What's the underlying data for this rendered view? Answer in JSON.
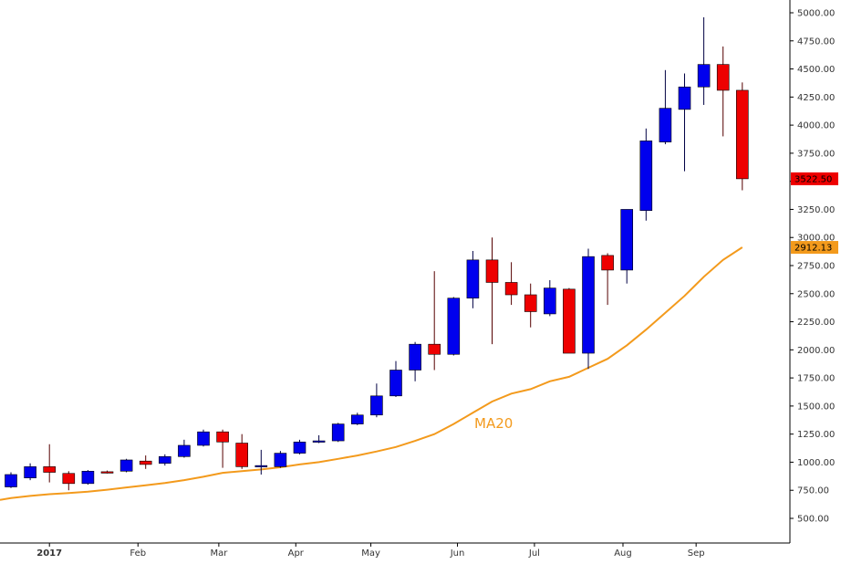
{
  "chart_data": {
    "type": "candlestick",
    "y_axis": {
      "ticks": [
        "5000.00",
        "4750.00",
        "4500.00",
        "4250.00",
        "4000.00",
        "3750.00",
        "3500.00",
        "3250.00",
        "3000.00",
        "2750.00",
        "2500.00",
        "2250.00",
        "2000.00",
        "1750.00",
        "1500.00",
        "1250.00",
        "1000.00",
        "750.00",
        "500.00"
      ],
      "ylim": [
        250,
        5080
      ],
      "position": "right"
    },
    "x_axis": {
      "months": [
        {
          "label": "2017",
          "index": 2,
          "bold": true
        },
        {
          "label": "Feb",
          "index": 6.6
        },
        {
          "label": "Mar",
          "index": 10.8
        },
        {
          "label": "Apr",
          "index": 14.8
        },
        {
          "label": "May",
          "index": 18.7
        },
        {
          "label": "Jun",
          "index": 23.2
        },
        {
          "label": "Jul",
          "index": 27.2
        },
        {
          "label": "Aug",
          "index": 31.8
        },
        {
          "label": "Sep",
          "index": 35.6
        }
      ]
    },
    "grid": false,
    "up_color": "#0000ee",
    "down_color": "#ee0000",
    "candles": [
      {
        "o": 780,
        "h": 910,
        "l": 770,
        "c": 890
      },
      {
        "o": 860,
        "h": 990,
        "l": 840,
        "c": 960
      },
      {
        "o": 960,
        "h": 1160,
        "l": 820,
        "c": 910
      },
      {
        "o": 900,
        "h": 920,
        "l": 750,
        "c": 810
      },
      {
        "o": 810,
        "h": 930,
        "l": 800,
        "c": 920
      },
      {
        "o": 915,
        "h": 925,
        "l": 900,
        "c": 910
      },
      {
        "o": 920,
        "h": 1030,
        "l": 910,
        "c": 1020
      },
      {
        "o": 1010,
        "h": 1060,
        "l": 940,
        "c": 980
      },
      {
        "o": 990,
        "h": 1070,
        "l": 970,
        "c": 1050
      },
      {
        "o": 1050,
        "h": 1200,
        "l": 1040,
        "c": 1150
      },
      {
        "o": 1150,
        "h": 1290,
        "l": 1140,
        "c": 1270
      },
      {
        "o": 1270,
        "h": 1290,
        "l": 950,
        "c": 1180
      },
      {
        "o": 1170,
        "h": 1250,
        "l": 940,
        "c": 960
      },
      {
        "o": 960,
        "h": 1110,
        "l": 890,
        "c": 970
      },
      {
        "o": 960,
        "h": 1100,
        "l": 950,
        "c": 1080
      },
      {
        "o": 1080,
        "h": 1200,
        "l": 1070,
        "c": 1180
      },
      {
        "o": 1180,
        "h": 1240,
        "l": 1170,
        "c": 1190
      },
      {
        "o": 1190,
        "h": 1350,
        "l": 1180,
        "c": 1340
      },
      {
        "o": 1340,
        "h": 1440,
        "l": 1330,
        "c": 1420
      },
      {
        "o": 1420,
        "h": 1700,
        "l": 1400,
        "c": 1590
      },
      {
        "o": 1590,
        "h": 1900,
        "l": 1580,
        "c": 1820
      },
      {
        "o": 1820,
        "h": 2070,
        "l": 1720,
        "c": 2050
      },
      {
        "o": 2050,
        "h": 2700,
        "l": 1820,
        "c": 1960
      },
      {
        "o": 1960,
        "h": 2470,
        "l": 1950,
        "c": 2460
      },
      {
        "o": 2460,
        "h": 2880,
        "l": 2370,
        "c": 2800
      },
      {
        "o": 2800,
        "h": 3000,
        "l": 2050,
        "c": 2600
      },
      {
        "o": 2600,
        "h": 2780,
        "l": 2400,
        "c": 2490
      },
      {
        "o": 2490,
        "h": 2590,
        "l": 2200,
        "c": 2340
      },
      {
        "o": 2320,
        "h": 2620,
        "l": 2300,
        "c": 2550
      },
      {
        "o": 2540,
        "h": 2550,
        "l": 1970,
        "c": 1970
      },
      {
        "o": 1970,
        "h": 2900,
        "l": 1830,
        "c": 2830
      },
      {
        "o": 2840,
        "h": 2860,
        "l": 2400,
        "c": 2710
      },
      {
        "o": 2710,
        "h": 3250,
        "l": 2590,
        "c": 3250
      },
      {
        "o": 3240,
        "h": 3970,
        "l": 3150,
        "c": 3860
      },
      {
        "o": 3850,
        "h": 4490,
        "l": 3830,
        "c": 4150
      },
      {
        "o": 4140,
        "h": 4460,
        "l": 3590,
        "c": 4340
      },
      {
        "o": 4340,
        "h": 4960,
        "l": 4180,
        "c": 4540
      },
      {
        "o": 4540,
        "h": 4700,
        "l": 3900,
        "c": 4310
      },
      {
        "o": 4310,
        "h": 4380,
        "l": 3420,
        "c": 3522.5
      }
    ],
    "ma20": {
      "name": "MA20",
      "color": "#f39a1c",
      "values": [
        680,
        700,
        715,
        725,
        738,
        755,
        775,
        795,
        815,
        840,
        870,
        905,
        920,
        935,
        955,
        980,
        1000,
        1030,
        1060,
        1095,
        1135,
        1190,
        1250,
        1340,
        1440,
        1540,
        1610,
        1650,
        1720,
        1760,
        1840,
        1920,
        2040,
        2180,
        2330,
        2480,
        2650,
        2800,
        2912.13
      ]
    },
    "last_price": {
      "value": "3522.50",
      "color": "#ee0000"
    },
    "ma_last": {
      "value": "2912.13",
      "color": "#f39a1c"
    }
  }
}
